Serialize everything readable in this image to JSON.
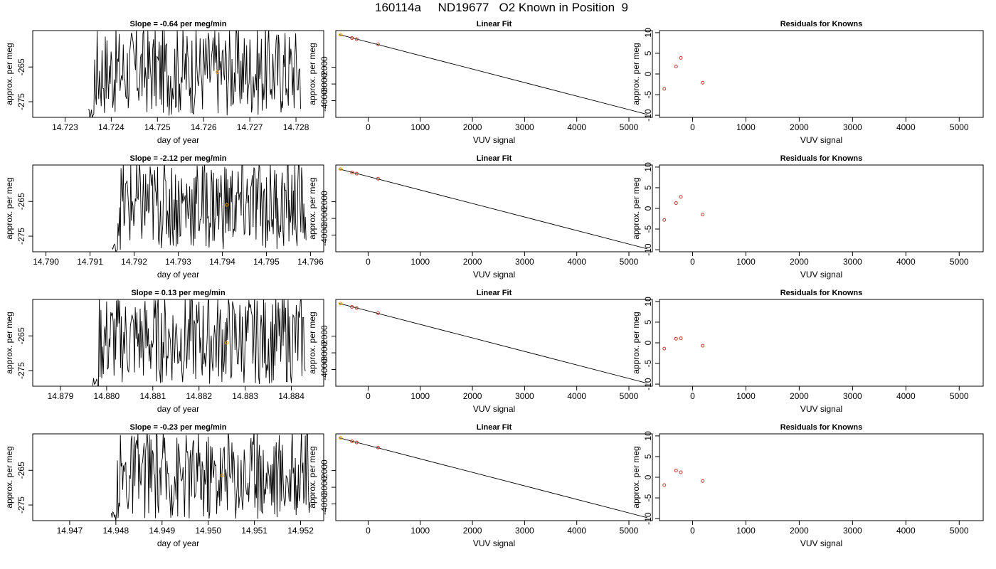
{
  "page_title": "160114a     ND19677   O2 Known in Position  9",
  "colors": {
    "trace": "#000000",
    "known_point": "#e8a000",
    "residual_point": "#c0392b",
    "axes": "#000000"
  },
  "chart_data": [
    {
      "type": "line",
      "title": "Slope =  -0.64  per meg/min",
      "xlabel": "day of year",
      "ylabel": "approx. per meg",
      "xlim": [
        14.7223,
        14.7286
      ],
      "ylim": [
        -279.5,
        -254.5
      ],
      "x_ticks": [
        14.723,
        14.724,
        14.725,
        14.726,
        14.727,
        14.728
      ],
      "x_tick_labels": [
        "14.723",
        "14.724",
        "14.725",
        "14.726",
        "14.727",
        "14.728"
      ],
      "y_ticks": [
        -265,
        -275
      ],
      "y_tick_labels": [
        "-265",
        "-275"
      ],
      "trace_range": [
        14.7235,
        14.7281
      ],
      "marker": {
        "x": 14.7263,
        "y": -266.5
      }
    },
    {
      "type": "scatter",
      "title": "Linear Fit",
      "xlabel": "VUV signal",
      "ylabel": "approx. per meg",
      "xlim": [
        -620,
        5450
      ],
      "ylim": [
        -5000,
        200
      ],
      "x_ticks": [
        0,
        1000,
        2000,
        3000,
        4000,
        5000
      ],
      "x_tick_labels": [
        "0",
        "1000",
        "2000",
        "3000",
        "4000",
        "5000"
      ],
      "y_ticks": [
        -2000,
        -3000,
        -4000
      ],
      "y_tick_labels": [
        "-2000",
        "-3000",
        "-4000"
      ],
      "fit_line": {
        "x": [
          -550,
          5350
        ],
        "y": [
          -42,
          -4820
        ]
      },
      "points": {
        "x": [
          -530,
          -310,
          -220,
          190
        ],
        "y": [
          -45,
          -245,
          -315,
          -620
        ]
      }
    },
    {
      "type": "scatter",
      "title": "Residuals for Knowns",
      "xlabel": "VUV signal",
      "ylabel": "approx. per meg",
      "xlim": [
        -620,
        5450
      ],
      "ylim": [
        -10.5,
        10.5
      ],
      "x_ticks": [
        0,
        1000,
        2000,
        3000,
        4000,
        5000
      ],
      "x_tick_labels": [
        "0",
        "1000",
        "2000",
        "3000",
        "4000",
        "5000"
      ],
      "y_ticks": [
        10,
        5,
        0,
        -5,
        -10
      ],
      "y_tick_labels": [
        "10",
        "5",
        "0",
        "-5",
        "-10"
      ],
      "points": {
        "x": [
          -530,
          -310,
          -220,
          190
        ],
        "y": [
          -3.6,
          1.8,
          3.9,
          -2.1
        ]
      }
    },
    {
      "type": "line",
      "title": "Slope =  -2.12  per meg/min",
      "xlabel": "day of year",
      "ylabel": "approx. per meg",
      "xlim": [
        14.7897,
        14.7963
      ],
      "ylim": [
        -279.5,
        -254.5
      ],
      "x_ticks": [
        14.79,
        14.791,
        14.792,
        14.793,
        14.794,
        14.795,
        14.796
      ],
      "x_tick_labels": [
        "14.790",
        "14.791",
        "14.792",
        "14.793",
        "14.794",
        "14.795",
        "14.796"
      ],
      "y_ticks": [
        -265,
        -275
      ],
      "y_tick_labels": [
        "-265",
        "-275"
      ],
      "trace_range": [
        14.7915,
        14.7959
      ],
      "marker": {
        "x": 14.7941,
        "y": -266.0
      }
    },
    {
      "type": "scatter",
      "title": "Linear Fit",
      "xlabel": "VUV signal",
      "ylabel": "approx. per meg",
      "xlim": [
        -620,
        5450
      ],
      "ylim": [
        -5000,
        200
      ],
      "x_ticks": [
        0,
        1000,
        2000,
        3000,
        4000,
        5000
      ],
      "x_tick_labels": [
        "0",
        "1000",
        "2000",
        "3000",
        "4000",
        "5000"
      ],
      "y_ticks": [
        -2000,
        -3000,
        -4000
      ],
      "y_tick_labels": [
        "-2000",
        "-3000",
        "-4000"
      ],
      "fit_line": {
        "x": [
          -550,
          5350
        ],
        "y": [
          -42,
          -4820
        ]
      },
      "points": {
        "x": [
          -530,
          -310,
          -220,
          190
        ],
        "y": [
          -45,
          -245,
          -315,
          -620
        ]
      }
    },
    {
      "type": "scatter",
      "title": "Residuals for Knowns",
      "xlabel": "VUV signal",
      "ylabel": "approx. per meg",
      "xlim": [
        -620,
        5450
      ],
      "ylim": [
        -10.5,
        10.5
      ],
      "x_ticks": [
        0,
        1000,
        2000,
        3000,
        4000,
        5000
      ],
      "x_tick_labels": [
        "0",
        "1000",
        "2000",
        "3000",
        "4000",
        "5000"
      ],
      "y_ticks": [
        10,
        5,
        0,
        -5,
        -10
      ],
      "y_tick_labels": [
        "10",
        "5",
        "0",
        "-5",
        "-10"
      ],
      "points": {
        "x": [
          -530,
          -310,
          -220,
          190
        ],
        "y": [
          -2.8,
          1.3,
          2.8,
          -1.5
        ]
      }
    },
    {
      "type": "line",
      "title": "Slope =  0.13  per meg/min",
      "xlabel": "day of year",
      "ylabel": "approx. per meg",
      "xlim": [
        14.8784,
        14.8847
      ],
      "ylim": [
        -279.5,
        -254.5
      ],
      "x_ticks": [
        14.879,
        14.88,
        14.881,
        14.882,
        14.883,
        14.884
      ],
      "x_tick_labels": [
        "14.879",
        "14.880",
        "14.881",
        "14.882",
        "14.883",
        "14.884"
      ],
      "y_ticks": [
        -265,
        -275
      ],
      "y_tick_labels": [
        "-265",
        "-275"
      ],
      "trace_range": [
        14.8797,
        14.8843
      ],
      "marker": {
        "x": 14.8826,
        "y": -267.0
      }
    },
    {
      "type": "scatter",
      "title": "Linear Fit",
      "xlabel": "VUV signal",
      "ylabel": "approx. per meg",
      "xlim": [
        -620,
        5450
      ],
      "ylim": [
        -5000,
        200
      ],
      "x_ticks": [
        0,
        1000,
        2000,
        3000,
        4000,
        5000
      ],
      "x_tick_labels": [
        "0",
        "1000",
        "2000",
        "3000",
        "4000",
        "5000"
      ],
      "y_ticks": [
        -2000,
        -3000,
        -4000
      ],
      "y_tick_labels": [
        "-2000",
        "-3000",
        "-4000"
      ],
      "fit_line": {
        "x": [
          -550,
          5350
        ],
        "y": [
          -42,
          -4820
        ]
      },
      "points": {
        "x": [
          -530,
          -310,
          -220,
          190
        ],
        "y": [
          -45,
          -245,
          -315,
          -620
        ]
      }
    },
    {
      "type": "scatter",
      "title": "Residuals for Knowns",
      "xlabel": "VUV signal",
      "ylabel": "approx. per meg",
      "xlim": [
        -620,
        5450
      ],
      "ylim": [
        -10.5,
        10.5
      ],
      "x_ticks": [
        0,
        1000,
        2000,
        3000,
        4000,
        5000
      ],
      "x_tick_labels": [
        "0",
        "1000",
        "2000",
        "3000",
        "4000",
        "5000"
      ],
      "y_ticks": [
        10,
        5,
        0,
        -5,
        -10
      ],
      "y_tick_labels": [
        "10",
        "5",
        "0",
        "-5",
        "-10"
      ],
      "points": {
        "x": [
          -530,
          -310,
          -220,
          190
        ],
        "y": [
          -1.4,
          1.0,
          1.1,
          -0.7
        ]
      }
    },
    {
      "type": "line",
      "title": "Slope =  -0.23  per meg/min",
      "xlabel": "day of year",
      "ylabel": "approx. per meg",
      "xlim": [
        14.9462,
        14.9525
      ],
      "ylim": [
        -279.5,
        -254.5
      ],
      "x_ticks": [
        14.947,
        14.948,
        14.949,
        14.95,
        14.951,
        14.952
      ],
      "x_tick_labels": [
        "14.947",
        "14.948",
        "14.949",
        "14.950",
        "14.951",
        "14.952"
      ],
      "y_ticks": [
        -265,
        -275
      ],
      "y_tick_labels": [
        "-265",
        "-275"
      ],
      "trace_range": [
        14.9479,
        14.9522
      ],
      "marker": {
        "x": 14.9503,
        "y": -266.5
      }
    },
    {
      "type": "scatter",
      "title": "Linear Fit",
      "xlabel": "VUV signal",
      "ylabel": "approx. per meg",
      "xlim": [
        -620,
        5450
      ],
      "ylim": [
        -5000,
        200
      ],
      "x_ticks": [
        0,
        1000,
        2000,
        3000,
        4000,
        5000
      ],
      "x_tick_labels": [
        "0",
        "1000",
        "2000",
        "3000",
        "4000",
        "5000"
      ],
      "y_ticks": [
        -2000,
        -3000,
        -4000
      ],
      "y_tick_labels": [
        "-2000",
        "-3000",
        "-4000"
      ],
      "fit_line": {
        "x": [
          -550,
          5350
        ],
        "y": [
          -42,
          -4820
        ]
      },
      "points": {
        "x": [
          -530,
          -310,
          -220,
          190
        ],
        "y": [
          -45,
          -245,
          -315,
          -620
        ]
      }
    },
    {
      "type": "scatter",
      "title": "Residuals for Knowns",
      "xlabel": "VUV signal",
      "ylabel": "approx. per meg",
      "xlim": [
        -620,
        5450
      ],
      "ylim": [
        -10.5,
        10.5
      ],
      "x_ticks": [
        0,
        1000,
        2000,
        3000,
        4000,
        5000
      ],
      "x_tick_labels": [
        "0",
        "1000",
        "2000",
        "3000",
        "4000",
        "5000"
      ],
      "y_ticks": [
        10,
        5,
        0,
        -5,
        -10
      ],
      "y_tick_labels": [
        "10",
        "5",
        "0",
        "-5",
        "-10"
      ],
      "points": {
        "x": [
          -530,
          -310,
          -220,
          190
        ],
        "y": [
          -1.9,
          1.6,
          1.2,
          -0.9
        ]
      }
    }
  ]
}
